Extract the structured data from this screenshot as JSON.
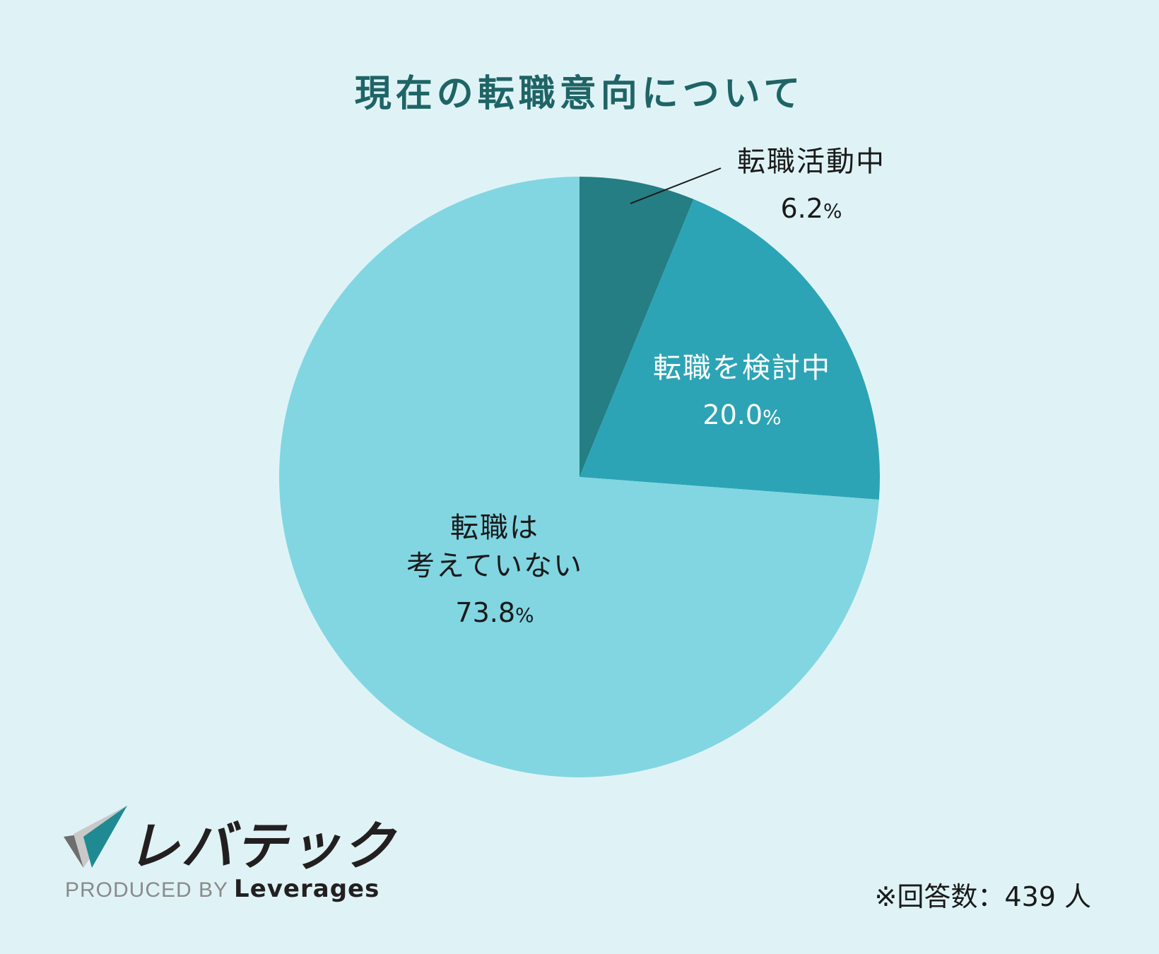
{
  "chart_data": {
    "type": "pie",
    "title": "現在の転職意向について",
    "slices": [
      {
        "label": "転職活動中",
        "value": 6.2,
        "color": "#247e83"
      },
      {
        "label": "転職を検討中",
        "value": 20.0,
        "color": "#2ca4b5"
      },
      {
        "label": "転職は\n考えていない",
        "value": 73.8,
        "color": "#81d6e2"
      }
    ],
    "value_labels": [
      "6.2",
      "20.0",
      "73.8"
    ],
    "percent_sign": "%",
    "start_angle_deg": 0,
    "direction": "clockwise"
  },
  "footer": {
    "brand": "レバテック",
    "produced_by": "PRODUCED BY",
    "company": "Leverages",
    "respondents": "※回答数：439 人"
  },
  "colors": {
    "background": "#dff3f6",
    "title": "#1f6466",
    "logo_gray": "#6e6e6e",
    "logo_teal": "#1f8a92",
    "logo_light": "#c9c9c9"
  }
}
